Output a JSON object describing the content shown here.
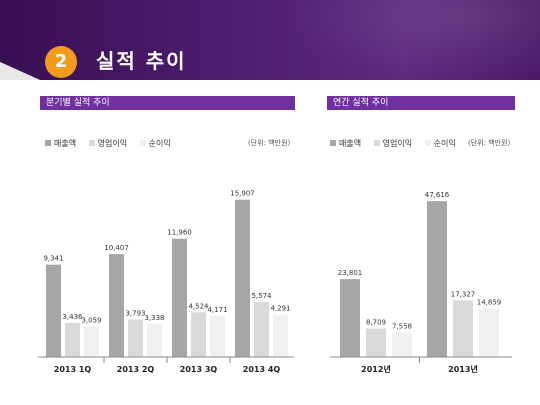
{
  "header": {
    "number": "2",
    "title": "실적 추이"
  },
  "colors": {
    "header_bg": "#4e1e70",
    "section_bar": "#7030a0",
    "badge": "#f29b1d",
    "revenue": "#a6a6a6",
    "operating_profit": "#d9d9d9",
    "net_profit": "#f0f0f0"
  },
  "quarterly": {
    "section_title": "분기별 실적 추이",
    "unit": "(단위: 백만원)",
    "legend": [
      "매출액",
      "영업이익",
      "순이익"
    ]
  },
  "annual": {
    "section_title": "연간 실적 추이",
    "unit": "(단위: 백만원)",
    "legend": [
      "매출액",
      "영업이익",
      "순이익"
    ]
  },
  "chart_data": [
    {
      "type": "bar",
      "title": "분기별 실적 추이",
      "categories": [
        "2013 1Q",
        "2013 2Q",
        "2013 3Q",
        "2013 4Q"
      ],
      "series": [
        {
          "name": "매출액",
          "values": [
            9341,
            10407,
            11960,
            15907
          ],
          "labels": [
            "9,341",
            "10,407",
            "11,960",
            "15,907"
          ]
        },
        {
          "name": "영업이익",
          "values": [
            3436,
            3793,
            4524,
            5574
          ],
          "labels": [
            "3,436",
            "3,793",
            "4,524",
            "5,574"
          ]
        },
        {
          "name": "순이익",
          "values": [
            3059,
            3338,
            4171,
            4291
          ],
          "labels": [
            "3,059",
            "3,338",
            "4,171",
            "4,291"
          ]
        }
      ],
      "ylim": [
        0,
        18000
      ],
      "legend": "top-left",
      "grid": false
    },
    {
      "type": "bar",
      "title": "연간 실적 추이",
      "categories": [
        "2012년",
        "2013년"
      ],
      "series": [
        {
          "name": "매출액",
          "values": [
            23801,
            47616
          ],
          "labels": [
            "23,801",
            "47,616"
          ]
        },
        {
          "name": "영업이익",
          "values": [
            8709,
            17327
          ],
          "labels": [
            "8,709",
            "17,327"
          ]
        },
        {
          "name": "순이익",
          "values": [
            7558,
            14859
          ],
          "labels": [
            "7,558",
            "14,859"
          ]
        }
      ],
      "ylim": [
        0,
        55000
      ],
      "legend": "top-left",
      "grid": false
    }
  ]
}
